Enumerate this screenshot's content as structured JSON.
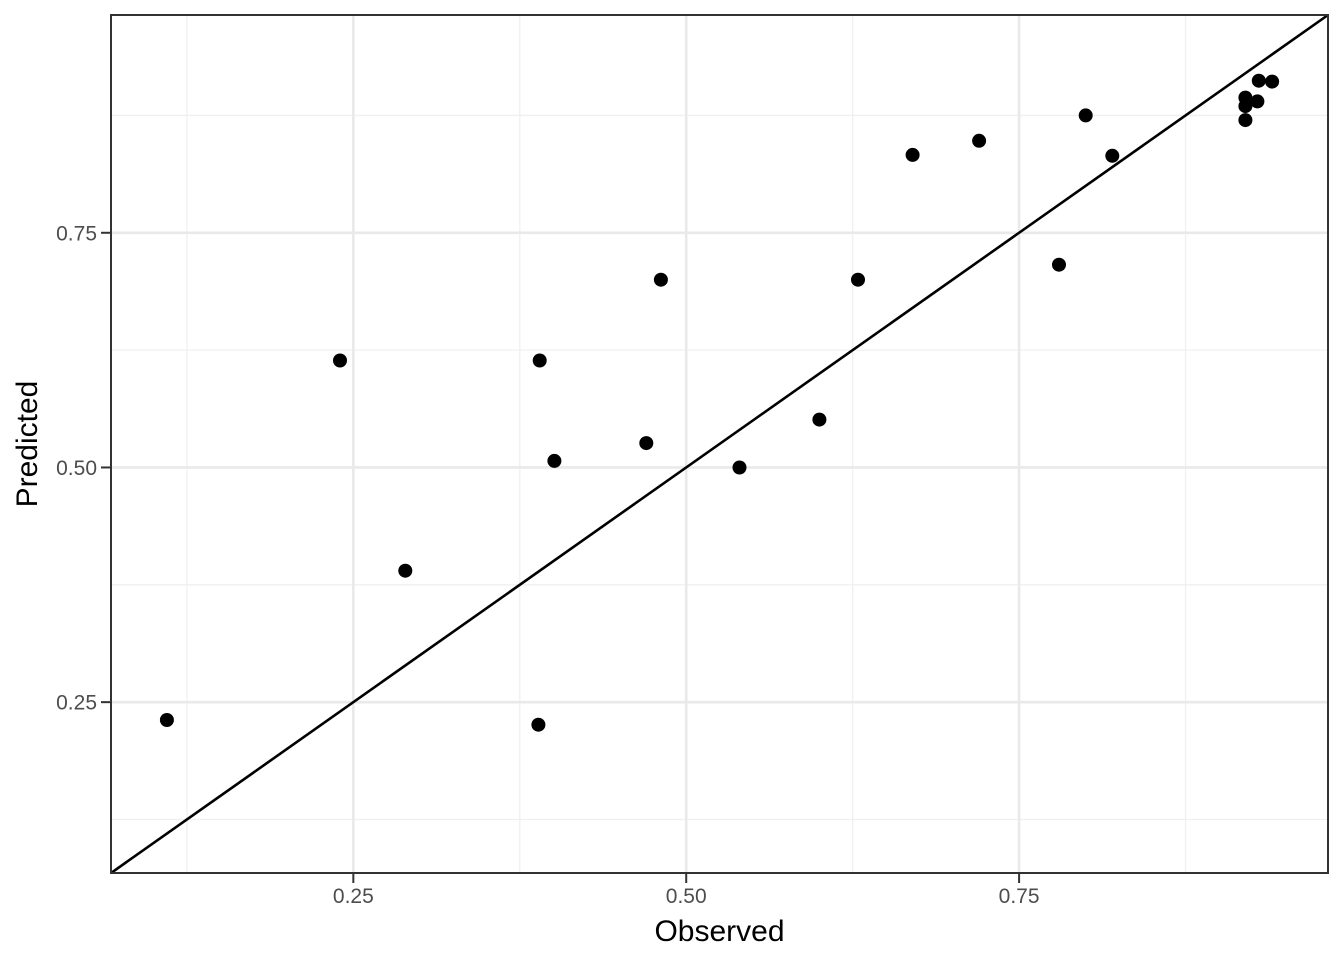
{
  "chart_data": {
    "type": "scatter",
    "title": "",
    "xlabel": "Observed",
    "ylabel": "Predicted",
    "xlim": [
      0.068,
      0.982
    ],
    "ylim": [
      0.068,
      0.982
    ],
    "grid": "major and minor, on",
    "legend_position": "none",
    "x_ticks": [
      {
        "value": 0.25,
        "label": "0.25"
      },
      {
        "value": 0.5,
        "label": "0.50"
      },
      {
        "value": 0.75,
        "label": "0.75"
      }
    ],
    "y_ticks": [
      {
        "value": 0.25,
        "label": "0.25"
      },
      {
        "value": 0.5,
        "label": "0.50"
      },
      {
        "value": 0.75,
        "label": "0.75"
      }
    ],
    "minor_grid_values": [
      0.125,
      0.375,
      0.625,
      0.875
    ],
    "identity_line": {
      "slope": 1,
      "intercept": 0,
      "color": "#000000"
    },
    "series": [
      {
        "name": "observed-vs-predicted",
        "marker": "filled-circle",
        "color": "#000000",
        "points": [
          [
            0.11,
            0.231
          ],
          [
            0.24,
            0.614
          ],
          [
            0.289,
            0.39
          ],
          [
            0.389,
            0.226
          ],
          [
            0.39,
            0.614
          ],
          [
            0.401,
            0.507
          ],
          [
            0.47,
            0.526
          ],
          [
            0.481,
            0.7
          ],
          [
            0.54,
            0.5
          ],
          [
            0.6,
            0.551
          ],
          [
            0.629,
            0.7
          ],
          [
            0.67,
            0.833
          ],
          [
            0.72,
            0.848
          ],
          [
            0.78,
            0.716
          ],
          [
            0.8,
            0.875
          ],
          [
            0.82,
            0.832
          ],
          [
            0.92,
            0.87
          ],
          [
            0.92,
            0.885
          ],
          [
            0.92,
            0.894
          ],
          [
            0.929,
            0.89
          ],
          [
            0.93,
            0.912
          ],
          [
            0.94,
            0.911
          ]
        ]
      }
    ],
    "colors": {
      "background": "#FFFFFF",
      "panel_background": "#FFFFFF",
      "panel_border": "#333333",
      "grid_major": "#E9E9E9",
      "grid_minor": "#F0F0F0",
      "tick_mark": "#333333",
      "tick_label": "#4D4D4D",
      "axis_title": "#000000",
      "point": "#000000",
      "identity_line": "#000000"
    }
  }
}
